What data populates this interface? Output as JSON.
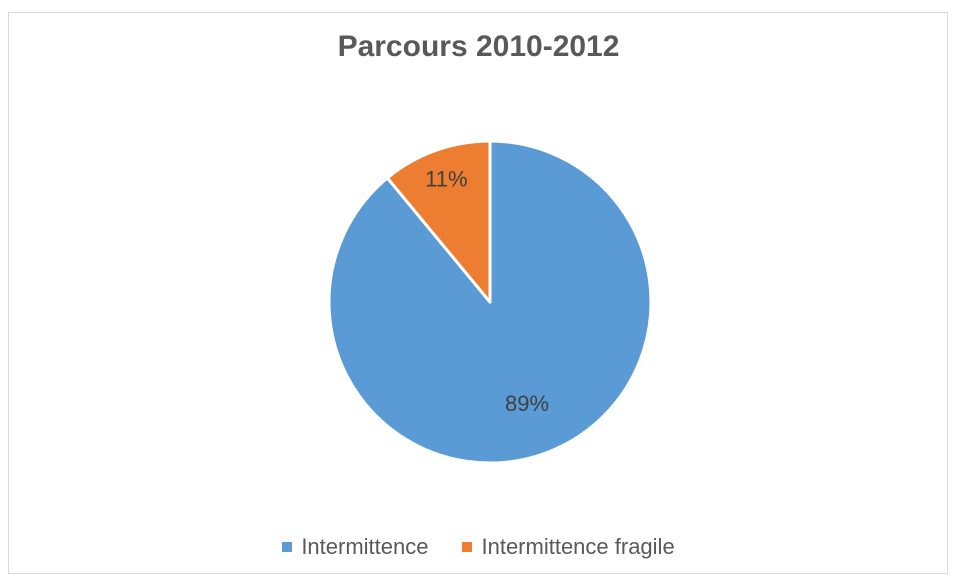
{
  "chart_data": {
    "type": "pie",
    "title": "Parcours 2010-2012",
    "categories": [
      "Intermittence",
      "Intermittence fragile"
    ],
    "values": [
      89,
      11
    ],
    "labels": [
      "89%",
      "11%"
    ],
    "colors": [
      "#5B9BD5",
      "#ED7D31"
    ],
    "legend_position": "bottom",
    "start_angle": "top",
    "direction": "clockwise"
  }
}
